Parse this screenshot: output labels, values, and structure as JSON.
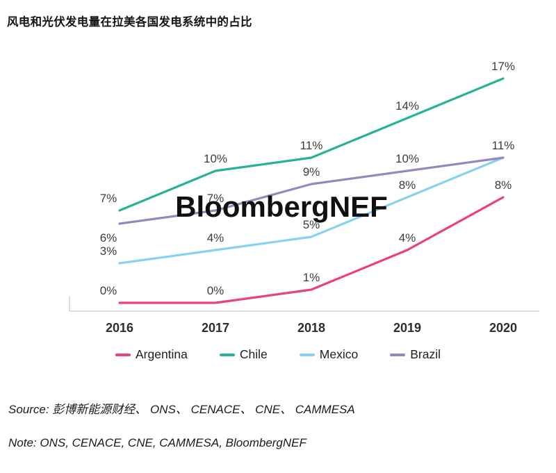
{
  "title": "风电和光伏发电量在拉美各国发电系统中的占比",
  "watermark": "BloombergNEF",
  "chart_data": {
    "type": "line",
    "title": "风电和光伏发电量在拉美各国发电系统中的占比",
    "x": [
      "2016",
      "2017",
      "2018",
      "2019",
      "2020"
    ],
    "unit": "%",
    "series": [
      {
        "name": "Argentina",
        "color": "#ED3F7E",
        "values": [
          0,
          0,
          1,
          4,
          8
        ]
      },
      {
        "name": "Chile",
        "color": "#27B196",
        "values": [
          7,
          10,
          11,
          14,
          17
        ]
      },
      {
        "name": "Mexico",
        "color": "#85D2F2",
        "values": [
          3,
          4,
          5,
          8,
          11
        ]
      },
      {
        "name": "Brazil",
        "color": "#9488BF",
        "values": [
          6,
          7,
          9,
          10,
          11
        ]
      }
    ],
    "ylim": [
      0,
      18
    ],
    "grid": false,
    "data_labels": true,
    "legend_position": "bottom"
  },
  "source": "Source: 彭博新能源财经、 ONS、 CENACE、 CNE、 CAMMESA",
  "note": "Note: ONS, CENACE, CNE, CAMMESA, BloombergNEF"
}
